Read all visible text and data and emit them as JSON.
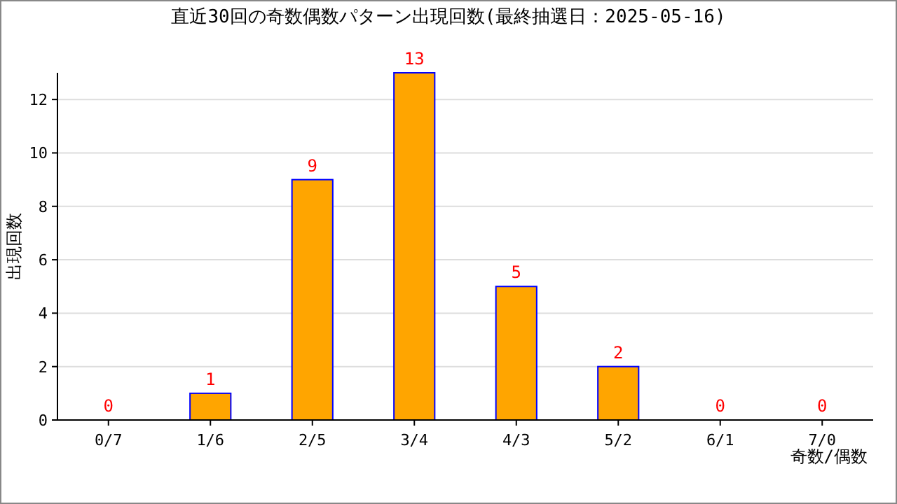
{
  "chart_data": {
    "type": "bar",
    "title": "直近30回の奇数偶数パターン出現回数(最終抽選日：2025-05-16)",
    "xlabel": "奇数/偶数",
    "ylabel": "出現回数",
    "categories": [
      "0/7",
      "1/6",
      "2/5",
      "3/4",
      "4/3",
      "5/2",
      "6/1",
      "7/0"
    ],
    "values": [
      0,
      1,
      9,
      13,
      5,
      2,
      0,
      0
    ],
    "color": "#ffa500",
    "ylim": [
      0,
      13
    ],
    "yticks": [
      0,
      2,
      4,
      6,
      8,
      10,
      12
    ],
    "grid": "y",
    "data_labels": true
  }
}
